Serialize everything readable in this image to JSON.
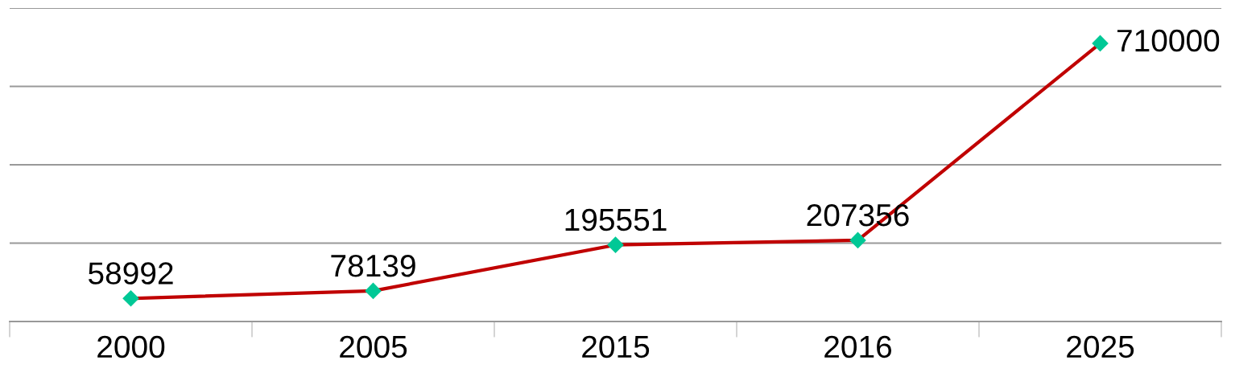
{
  "chart_data": {
    "type": "line",
    "categories": [
      "2000",
      "2005",
      "2015",
      "2016",
      "2025"
    ],
    "series": [
      {
        "color": "#c00000",
        "colors": [
          "#00c896",
          "#00c896",
          "#00c896",
          "#00c896",
          "#00c896"
        ],
        "values": [
          58992,
          78139,
          195551,
          207356,
          710000
        ]
      }
    ],
    "ylim": [
      0,
      800000
    ],
    "yticks": [
      {
        "value": 0,
        "label": null
      },
      {
        "value": 200000,
        "label": null
      },
      {
        "value": 400000,
        "label": null
      },
      {
        "value": 600000,
        "label": null
      },
      {
        "value": 800000,
        "label": null
      }
    ],
    "grid": "y",
    "tick_labels": "x",
    "marker": "diamond",
    "line_style": "solid",
    "data_labels": true
  }
}
